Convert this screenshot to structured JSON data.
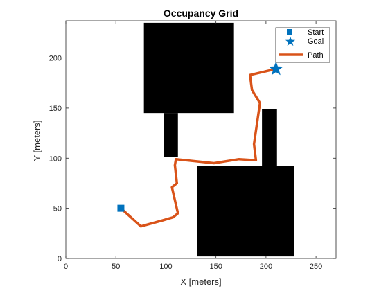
{
  "chart_data": {
    "type": "line",
    "title": "Occupancy Grid",
    "xlabel": "X [meters]",
    "ylabel": "Y [meters]",
    "xlim": [
      0,
      270
    ],
    "ylim": [
      0,
      237
    ],
    "xticks": [
      "0",
      "50",
      "100",
      "150",
      "200",
      "250"
    ],
    "yticks": [
      "0",
      "50",
      "100",
      "150",
      "200"
    ],
    "obstacles": [
      {
        "x0": 78,
        "x1": 168,
        "y0": 145,
        "y1": 235
      },
      {
        "x0": 98,
        "x1": 112,
        "y0": 101,
        "y1": 145
      },
      {
        "x0": 196,
        "x1": 211,
        "y0": 92,
        "y1": 149
      },
      {
        "x0": 131,
        "x1": 228,
        "y0": 2,
        "y1": 92
      }
    ],
    "start": {
      "x": 55,
      "y": 50
    },
    "goal": {
      "x": 210,
      "y": 189
    },
    "path": {
      "name": "Path",
      "x": [
        55,
        75,
        97,
        107,
        112,
        106,
        111,
        109,
        110,
        148,
        173,
        190,
        188,
        194,
        186,
        184,
        197,
        210
      ],
      "y": [
        50,
        32,
        38,
        41,
        45,
        71,
        75,
        93,
        99,
        95,
        99,
        98,
        114,
        155,
        168,
        183,
        186,
        189
      ]
    },
    "legend": {
      "position": "top-right",
      "entries": [
        "Start",
        "Goal",
        "Path"
      ]
    },
    "colors": {
      "start": "#0072BD",
      "goal": "#0072BD",
      "path": "#D95319",
      "obstacle": "#000000"
    }
  }
}
